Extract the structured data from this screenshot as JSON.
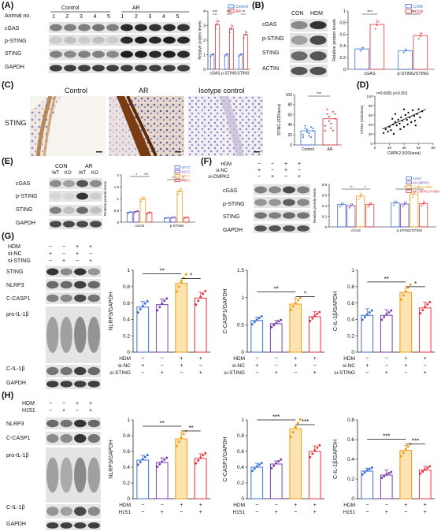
{
  "panels": {
    "A": {
      "label": "(A)",
      "animal_no_label": "Animal no.",
      "groups": [
        "Control",
        "AR"
      ],
      "animal_numbers": [
        "1",
        "2",
        "3",
        "4",
        "5",
        "1",
        "2",
        "3",
        "4",
        "5"
      ],
      "bands": [
        "cGAS",
        "p-STING",
        "STING",
        "GAPDH"
      ]
    },
    "B": {
      "label": "(B)",
      "groups": [
        "CON",
        "HDM"
      ],
      "bands": [
        "cGAS",
        "p-STING",
        "STING",
        "ACTIN"
      ]
    },
    "C": {
      "label": "(C)",
      "stain": "STING",
      "images": [
        "Control",
        "AR",
        "Isotype control"
      ]
    },
    "D": {
      "label": "(D)"
    },
    "E": {
      "label": "(E)",
      "groups": [
        "CON",
        "AR"
      ],
      "genotypes": [
        "WT",
        "KO",
        "WT",
        "KO"
      ],
      "bands": [
        "cGAS",
        "p-STING",
        "STING",
        "GAPDH"
      ]
    },
    "F": {
      "label": "(F)",
      "conditions": [
        {
          "name": "HDM",
          "signs": [
            "−",
            "−",
            "+",
            "+"
          ]
        },
        {
          "name": "si-NC",
          "signs": [
            "+",
            "−",
            "+",
            "−"
          ]
        },
        {
          "name": "si-CMPK2",
          "signs": [
            "−",
            "+",
            "−",
            "+"
          ]
        }
      ],
      "bands": [
        "cGAS",
        "p-STING",
        "STING",
        "GAPDH"
      ]
    },
    "G": {
      "label": "(G)",
      "conditions": [
        {
          "name": "HDM",
          "signs": [
            "−",
            "−",
            "+",
            "+"
          ]
        },
        {
          "name": "si-NC",
          "signs": [
            "+",
            "−",
            "+",
            "−"
          ]
        },
        {
          "name": "si-STING",
          "signs": [
            "−",
            "+",
            "−",
            "+"
          ]
        }
      ],
      "bands": [
        "STING",
        "NLRP3",
        "C-CASP1",
        "pro-IL-1β",
        "C-IL-1β",
        "GAPDH"
      ]
    },
    "H": {
      "label": "(H)",
      "conditions": [
        {
          "name": "HDM",
          "signs": [
            "−",
            "−",
            "+",
            "+"
          ]
        },
        {
          "name": "H151",
          "signs": [
            "−",
            "+",
            "−",
            "+"
          ]
        }
      ],
      "bands": [
        "NLRP3",
        "C-CASP1",
        "pro-IL-1β",
        "C-IL-1β",
        "GAPDH"
      ]
    }
  },
  "colors": {
    "control_blue": "#3a6fd8",
    "treat_red": "#e8323c",
    "orange": "#f39c12",
    "purple": "#7b3fb0"
  },
  "chart_data": [
    {
      "id": "A",
      "type": "bar",
      "ylabel": "Relative protein levels",
      "ylim": [
        0,
        4
      ],
      "yticks": [
        0,
        1,
        2,
        3,
        4
      ],
      "categories": [
        "cGAS",
        "p-STING",
        "STING"
      ],
      "series": [
        {
          "name": "Control",
          "values": [
            1.0,
            1.0,
            1.0
          ]
        },
        {
          "name": "AR",
          "values": [
            3.1,
            2.8,
            2.4
          ]
        }
      ],
      "significance": [
        "***",
        "***",
        "**"
      ],
      "legend_position": "top-right"
    },
    {
      "id": "B",
      "type": "bar",
      "ylabel": "Relative protein levels",
      "ylim": [
        0,
        1.0
      ],
      "yticks": [
        0,
        0.2,
        0.4,
        0.6,
        0.8,
        1.0
      ],
      "categories": [
        "cGAS",
        "p-STING/STING"
      ],
      "series": [
        {
          "name": "CON",
          "values": [
            0.35,
            0.32
          ]
        },
        {
          "name": "HDM",
          "values": [
            0.77,
            0.58
          ]
        }
      ],
      "significance": [
        "***",
        "**"
      ],
      "legend_position": "top-right"
    },
    {
      "id": "C",
      "type": "bar",
      "ylabel": "STING (IOD/area)",
      "ylim": [
        0,
        100
      ],
      "yticks": [
        0,
        20,
        40,
        60,
        80,
        100
      ],
      "categories": [
        "Control",
        "AR"
      ],
      "series": [
        {
          "values": [
            28,
            52
          ]
        }
      ],
      "significance": [
        "***"
      ]
    },
    {
      "id": "D",
      "type": "scatter",
      "xlabel": "CMPK2 (IOD/area)",
      "ylabel": "STING (IOD/area)",
      "annotation": "r=0.6081 p<0.001",
      "xlim": [
        0,
        80
      ],
      "ylim": [
        0,
        100
      ],
      "xticks": [
        0,
        20,
        40,
        60,
        80
      ],
      "yticks": [
        0,
        20,
        40,
        60,
        80,
        100
      ],
      "points": [
        [
          12,
          22
        ],
        [
          15,
          30
        ],
        [
          18,
          25
        ],
        [
          20,
          35
        ],
        [
          22,
          28
        ],
        [
          25,
          40
        ],
        [
          26,
          20
        ],
        [
          28,
          45
        ],
        [
          30,
          38
        ],
        [
          32,
          50
        ],
        [
          34,
          42
        ],
        [
          35,
          30
        ],
        [
          36,
          55
        ],
        [
          38,
          48
        ],
        [
          40,
          35
        ],
        [
          42,
          60
        ],
        [
          44,
          50
        ],
        [
          45,
          40
        ],
        [
          46,
          65
        ],
        [
          48,
          55
        ],
        [
          50,
          45
        ],
        [
          52,
          70
        ],
        [
          54,
          58
        ],
        [
          55,
          48
        ],
        [
          58,
          62
        ],
        [
          60,
          72
        ],
        [
          62,
          55
        ],
        [
          65,
          68
        ],
        [
          28,
          62
        ],
        [
          24,
          52
        ],
        [
          40,
          72
        ],
        [
          56,
          38
        ]
      ],
      "regression": [
        [
          10,
          30
        ],
        [
          70,
          72
        ]
      ]
    },
    {
      "id": "E",
      "type": "bar",
      "ylabel": "Relative protein levels",
      "ylim": [
        0,
        2.0
      ],
      "yticks": [
        0,
        0.5,
        1.0,
        1.5,
        2.0
      ],
      "categories": [
        "cGAS",
        "p-STING"
      ],
      "series": [
        {
          "name": "WT-C",
          "values": [
            0.42,
            0.18
          ]
        },
        {
          "name": "KO-C",
          "values": [
            0.45,
            0.2
          ]
        },
        {
          "name": "WT-A",
          "values": [
            0.98,
            1.32
          ]
        },
        {
          "name": "KO-A",
          "values": [
            0.4,
            0.2
          ]
        }
      ],
      "significance": [
        "*",
        "***",
        "**",
        "**"
      ],
      "legend_position": "top-right"
    },
    {
      "id": "F",
      "type": "bar",
      "ylabel": "Relative protein levels",
      "ylim": [
        0,
        0.8
      ],
      "yticks": [
        0,
        0.2,
        0.4,
        0.6,
        0.8
      ],
      "categories": [
        "cGAS",
        "p-STING/STING"
      ],
      "series": [
        {
          "name": "si-NC",
          "values": [
            0.42,
            0.45
          ]
        },
        {
          "name": "si-CMPK2",
          "values": [
            0.4,
            0.43
          ]
        },
        {
          "name": "si-NC+HDM",
          "values": [
            0.58,
            0.62
          ]
        },
        {
          "name": "si-CMPK2+HDM",
          "values": [
            0.42,
            0.44
          ]
        }
      ],
      "significance": [
        "**",
        "*",
        "*",
        "*"
      ],
      "legend_position": "top-right"
    },
    {
      "id": "G1",
      "type": "bar",
      "ylabel": "NLRP3/GAPDH",
      "ylim": [
        0,
        1.0
      ],
      "yticks": [
        0,
        0.2,
        0.4,
        0.6,
        0.8,
        1.0
      ],
      "categories": [
        "1",
        "2",
        "3",
        "4"
      ],
      "values": [
        0.55,
        0.58,
        0.84,
        0.66
      ],
      "errors": [
        0.07,
        0.07,
        0.04,
        0.07
      ],
      "significance": [
        "**",
        "*"
      ]
    },
    {
      "id": "G2",
      "type": "bar",
      "ylabel": "C-CASP1/GAPDH",
      "ylim": [
        0,
        1.5
      ],
      "yticks": [
        0,
        0.5,
        1.0,
        1.5
      ],
      "categories": [
        "1",
        "2",
        "3",
        "4"
      ],
      "values": [
        0.58,
        0.52,
        0.88,
        0.65
      ],
      "errors": [
        0.06,
        0.06,
        0.11,
        0.09
      ],
      "significance": [
        "**",
        "*"
      ]
    },
    {
      "id": "G3",
      "type": "bar",
      "ylabel": "C-IL-1β/GAPDH",
      "ylim": [
        0,
        1.0
      ],
      "yticks": [
        0,
        0.2,
        0.4,
        0.6,
        0.8,
        1.0
      ],
      "categories": [
        "1",
        "2",
        "3",
        "4"
      ],
      "values": [
        0.45,
        0.45,
        0.73,
        0.54
      ],
      "errors": [
        0.08,
        0.07,
        0.05,
        0.07
      ],
      "significance": [
        "**",
        "*"
      ]
    },
    {
      "id": "H1",
      "type": "bar",
      "ylabel": "NLRP3/GAPDH",
      "ylim": [
        0,
        1.0
      ],
      "yticks": [
        0,
        0.2,
        0.4,
        0.6,
        0.8,
        1.0
      ],
      "categories": [
        "1",
        "2",
        "3",
        "4"
      ],
      "values": [
        0.49,
        0.46,
        0.76,
        0.51
      ],
      "errors": [
        0.06,
        0.06,
        0.08,
        0.06
      ],
      "significance": [
        "**",
        "**"
      ]
    },
    {
      "id": "H2",
      "type": "bar",
      "ylabel": "C-CASP1/GAPDH",
      "ylim": [
        0,
        1.0
      ],
      "yticks": [
        0,
        0.2,
        0.4,
        0.6,
        0.8,
        1.0
      ],
      "categories": [
        "1",
        "2",
        "3",
        "4"
      ],
      "values": [
        0.4,
        0.44,
        0.89,
        0.6
      ],
      "errors": [
        0.05,
        0.04,
        0.03,
        0.07
      ],
      "significance": [
        "***",
        "***"
      ]
    },
    {
      "id": "H3",
      "type": "bar",
      "ylabel": "C-IL-1β/GAPDH",
      "ylim": [
        0,
        0.8
      ],
      "yticks": [
        0,
        0.2,
        0.4,
        0.6,
        0.8
      ],
      "categories": [
        "1",
        "2",
        "3",
        "4"
      ],
      "values": [
        0.28,
        0.24,
        0.49,
        0.29
      ],
      "errors": [
        0.03,
        0.05,
        0.05,
        0.04
      ],
      "significance": [
        "***",
        "***"
      ]
    }
  ],
  "xaxis_conditions": {
    "G": [
      {
        "name": "HDM",
        "signs": [
          "−",
          "−",
          "+",
          "+"
        ]
      },
      {
        "name": "si-NC",
        "signs": [
          "+",
          "−",
          "+",
          "−"
        ]
      },
      {
        "name": "si-STING",
        "signs": [
          "−",
          "+",
          "−",
          "+"
        ]
      }
    ],
    "H": [
      {
        "name": "HDM",
        "signs": [
          "−",
          "−",
          "+",
          "+"
        ]
      },
      {
        "name": "H151",
        "signs": [
          "−",
          "+",
          "−",
          "+"
        ]
      }
    ]
  }
}
